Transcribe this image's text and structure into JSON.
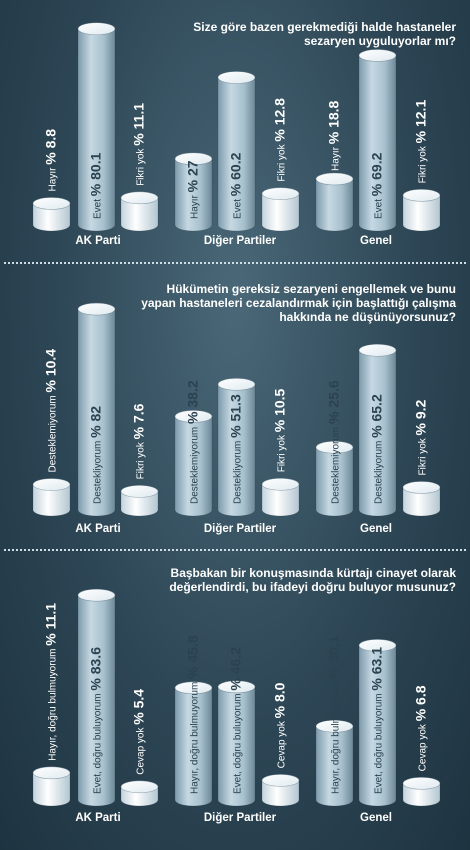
{
  "chart_data": [
    {
      "type": "bar",
      "title": "Size göre bazen gerekmediği halde hastaneler sezaryen uyguluyorlar mı?",
      "title_lines": [
        "Size göre bazen gerekmediği halde hastaneler",
        "sezaryen uyguluyorlar mı?"
      ],
      "groups": [
        {
          "name": "AK Parti",
          "bars": [
            {
              "label": "Hayır",
              "pct": "% 8.8",
              "value": 8.8
            },
            {
              "label": "Evet",
              "pct": "% 80.1",
              "value": 80.1
            },
            {
              "label": "Fikri yok",
              "pct": "% 11.1",
              "value": 11.1
            }
          ]
        },
        {
          "name": "Diğer Partiler",
          "bars": [
            {
              "label": "Hayır",
              "pct": "% 27",
              "value": 27
            },
            {
              "label": "Evet",
              "pct": "% 60.2",
              "value": 60.2
            },
            {
              "label": "Fikri yok",
              "pct": "% 12.8",
              "value": 12.8
            }
          ]
        },
        {
          "name": "Genel",
          "bars": [
            {
              "label": "Hayır",
              "pct": "% 18.8",
              "value": 18.8
            },
            {
              "label": "Evet",
              "pct": "% 69.2",
              "value": 69.2
            },
            {
              "label": "Fikri yok",
              "pct": "% 12.1",
              "value": 12.1
            }
          ]
        }
      ]
    },
    {
      "type": "bar",
      "title": "Hükümetin gereksiz sezaryeni engellemek ve bunu yapan hastaneleri cezalandırmak için başlattığı çalışma hakkında ne düşünüyorsunuz?",
      "title_lines": [
        "Hükümetin gereksiz sezaryeni engellemek ve bunu",
        "yapan hastaneleri cezalandırmak için başlattığı çalışma",
        "hakkında ne düşünüyorsunuz?"
      ],
      "groups": [
        {
          "name": "AK Parti",
          "bars": [
            {
              "label": "Desteklemiyorum",
              "pct": "% 10.4",
              "value": 10.4
            },
            {
              "label": "Destekliyorum",
              "pct": "% 82",
              "value": 82
            },
            {
              "label": "Fikri yok",
              "pct": "% 7.6",
              "value": 7.6
            }
          ]
        },
        {
          "name": "Diğer Partiler",
          "bars": [
            {
              "label": "Desteklemiyorum",
              "pct": "% 38.2",
              "value": 38.2
            },
            {
              "label": "Destekliyorum",
              "pct": "% 51.3",
              "value": 51.3
            },
            {
              "label": "Fikri yok",
              "pct": "% 10.5",
              "value": 10.5
            }
          ]
        },
        {
          "name": "Genel",
          "bars": [
            {
              "label": "Desteklemiyorum",
              "pct": "% 25.6",
              "value": 25.6
            },
            {
              "label": "Destekliyorum",
              "pct": "% 65.2",
              "value": 65.2
            },
            {
              "label": "Fikri yok",
              "pct": "% 9.2",
              "value": 9.2
            }
          ]
        }
      ]
    },
    {
      "type": "bar",
      "title": "Başbakan bir konuşmasında kürtajı cinayet olarak değerlendirdi, bu ifadeyi doğru buluyor musunuz?",
      "title_lines": [
        "Başbakan bir konuşmasında kürtajı cinayet olarak",
        "değerlendirdi, bu ifadeyi doğru buluyor musunuz?"
      ],
      "groups": [
        {
          "name": "AK Parti",
          "bars": [
            {
              "label": "Hayır, doğru bulmuyorum",
              "pct": "% 11.1",
              "value": 11.1
            },
            {
              "label": "Evet, doğru buluyorum",
              "pct": "% 83.6",
              "value": 83.6
            },
            {
              "label": "Cevap yok",
              "pct": "% 5.4",
              "value": 5.4
            }
          ]
        },
        {
          "name": "Diğer Partiler",
          "bars": [
            {
              "label": "Hayır, doğru bulmuyorum",
              "pct": "% 45.8",
              "value": 45.8
            },
            {
              "label": "Evet, doğru buluyorum",
              "pct": "% 46.2",
              "value": 46.2
            },
            {
              "label": "Cevap yok",
              "pct": "% 8.0",
              "value": 8.0
            }
          ]
        },
        {
          "name": "Genel",
          "bars": [
            {
              "label": "Hayır, doğru bulmuyorum",
              "pct": "% 30.1",
              "value": 30.1
            },
            {
              "label": "Evet, doğru buluyorum",
              "pct": "% 63.1",
              "value": 63.1
            },
            {
              "label": "Cevap yok",
              "pct": "% 6.8",
              "value": 6.8
            }
          ]
        }
      ]
    }
  ]
}
